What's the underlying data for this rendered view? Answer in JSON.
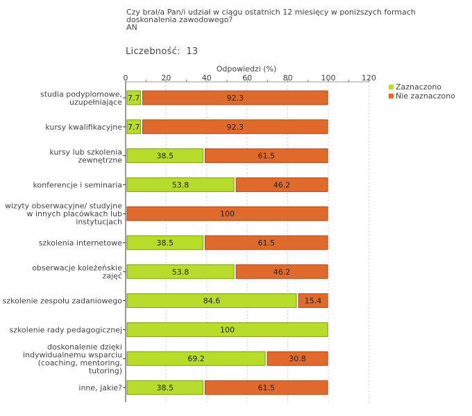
{
  "question": {
    "lines": [
      "Czy brał/a Pan/i udział w ciągu ostatnich 12 miesięcy w poniższych formach",
      "doskonalenia zawodowego?",
      " AN"
    ]
  },
  "count": {
    "label": "Liczebność:",
    "value": "13"
  },
  "colors": {
    "selected": "#b8dc2a",
    "not_selected": "#e06a2c",
    "grid": "#cccccc"
  },
  "chart_data": {
    "type": "bar",
    "orientation": "horizontal",
    "stacked": true,
    "title": "Czy brał/a Pan/i udział w ciągu ostatnich 12 miesięcy w poniższych formach doskonalenia zawodowego? AN",
    "xlabel": "Odpowiedzi (%)",
    "ylabel": "",
    "xlim": [
      0,
      120
    ],
    "ticks": [
      "0",
      "20",
      "40",
      "60",
      "80",
      "100",
      "120"
    ],
    "legend_position": "right",
    "categories": [
      [
        "studia podyplomowe,",
        "uzupełniające"
      ],
      [
        "kursy kwalifikacyjne"
      ],
      [
        "kursy lub szkolenia",
        "zewnętrzne"
      ],
      [
        "konferencje i seminaria"
      ],
      [
        "wizyty obserwacyjne/ studyjne",
        "w innych placówkach lub",
        "instytucjach"
      ],
      [
        "szkolenia internetowe"
      ],
      [
        "obserwacje koleżeńskie",
        "zajęć"
      ],
      [
        "szkolenie zespołu zadaniowego"
      ],
      [
        "szkolenie rady pedagogicznej"
      ],
      [
        "doskonalenie dzięki",
        "indywidualnemu wsparciu",
        "(coaching, mentoring,",
        "tutoring)"
      ],
      [
        "inne, jakie?"
      ]
    ],
    "series": [
      {
        "name": "Zaznaczono",
        "color": "#b8dc2a",
        "values": [
          7.7,
          7.7,
          38.5,
          53.8,
          0,
          38.5,
          53.8,
          84.6,
          100,
          69.2,
          38.5
        ],
        "labels": [
          "7.7",
          "7.7",
          "38.5",
          "53.8",
          "",
          "38.5",
          "53.8",
          "84.6",
          "100",
          "69.2",
          "38.5"
        ]
      },
      {
        "name": "Nie zaznaczono",
        "color": "#e06a2c",
        "values": [
          92.3,
          92.3,
          61.5,
          46.2,
          100,
          61.5,
          46.2,
          15.4,
          0,
          30.8,
          61.5
        ],
        "labels": [
          "92.3",
          "92.3",
          "61.5",
          "46.2",
          "100",
          "61.5",
          "46.2",
          "15.4",
          "",
          "30.8",
          "61.5"
        ]
      }
    ]
  }
}
